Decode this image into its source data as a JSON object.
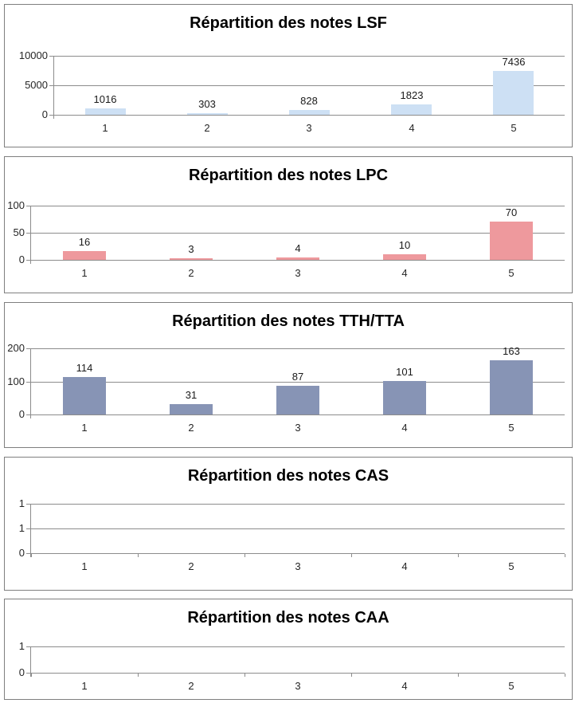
{
  "page": {
    "background": "#ffffff",
    "border_color": "#7f7f7f",
    "grid_color": "#8c8c8c",
    "label_color": "#262626"
  },
  "chart_data": [
    {
      "type": "bar",
      "title": "Répartition des notes LSF",
      "categories": [
        "1",
        "2",
        "3",
        "4",
        "5"
      ],
      "values": [
        1016,
        303,
        828,
        1823,
        7436
      ],
      "data_labels": [
        "1016",
        "303",
        "828",
        "1823",
        "7436"
      ],
      "y_tick_labels": [
        "10000",
        "5000",
        "0"
      ],
      "ylim": [
        0,
        10000
      ],
      "bar_color": "#cde0f4",
      "grid": true,
      "legend": false
    },
    {
      "type": "bar",
      "title": "Répartition des notes LPC",
      "categories": [
        "1",
        "2",
        "3",
        "4",
        "5"
      ],
      "values": [
        16,
        3,
        4,
        10,
        70
      ],
      "data_labels": [
        "16",
        "3",
        "4",
        "10",
        "70"
      ],
      "y_tick_labels": [
        "100",
        "50",
        "0"
      ],
      "ylim": [
        0,
        100
      ],
      "bar_color": "#ee999d",
      "grid": true,
      "legend": false
    },
    {
      "type": "bar",
      "title": "Répartition des notes TTH/TTA",
      "categories": [
        "1",
        "2",
        "3",
        "4",
        "5"
      ],
      "values": [
        114,
        31,
        87,
        101,
        163
      ],
      "data_labels": [
        "114",
        "31",
        "87",
        "101",
        "163"
      ],
      "y_tick_labels": [
        "200",
        "100",
        "0"
      ],
      "ylim": [
        0,
        200
      ],
      "bar_color": "#8794b5",
      "grid": true,
      "legend": false
    },
    {
      "type": "bar",
      "title": "Répartition des notes CAS",
      "categories": [
        "1",
        "2",
        "3",
        "4",
        "5"
      ],
      "values": [
        0,
        0,
        0,
        0,
        0
      ],
      "data_labels": [],
      "y_tick_labels": [
        "1",
        "1",
        "0"
      ],
      "ylim": [
        0,
        1
      ],
      "bar_color": "#cde0f4",
      "grid": true,
      "legend": false
    },
    {
      "type": "bar",
      "title": "Répartition des notes CAA",
      "categories": [
        "1",
        "2",
        "3",
        "4",
        "5"
      ],
      "values": [
        0,
        0,
        0,
        0,
        0
      ],
      "data_labels": [],
      "y_tick_labels": [
        "1",
        "0"
      ],
      "ylim": [
        0,
        1
      ],
      "bar_color": "#cde0f4",
      "grid": true,
      "legend": false
    }
  ]
}
